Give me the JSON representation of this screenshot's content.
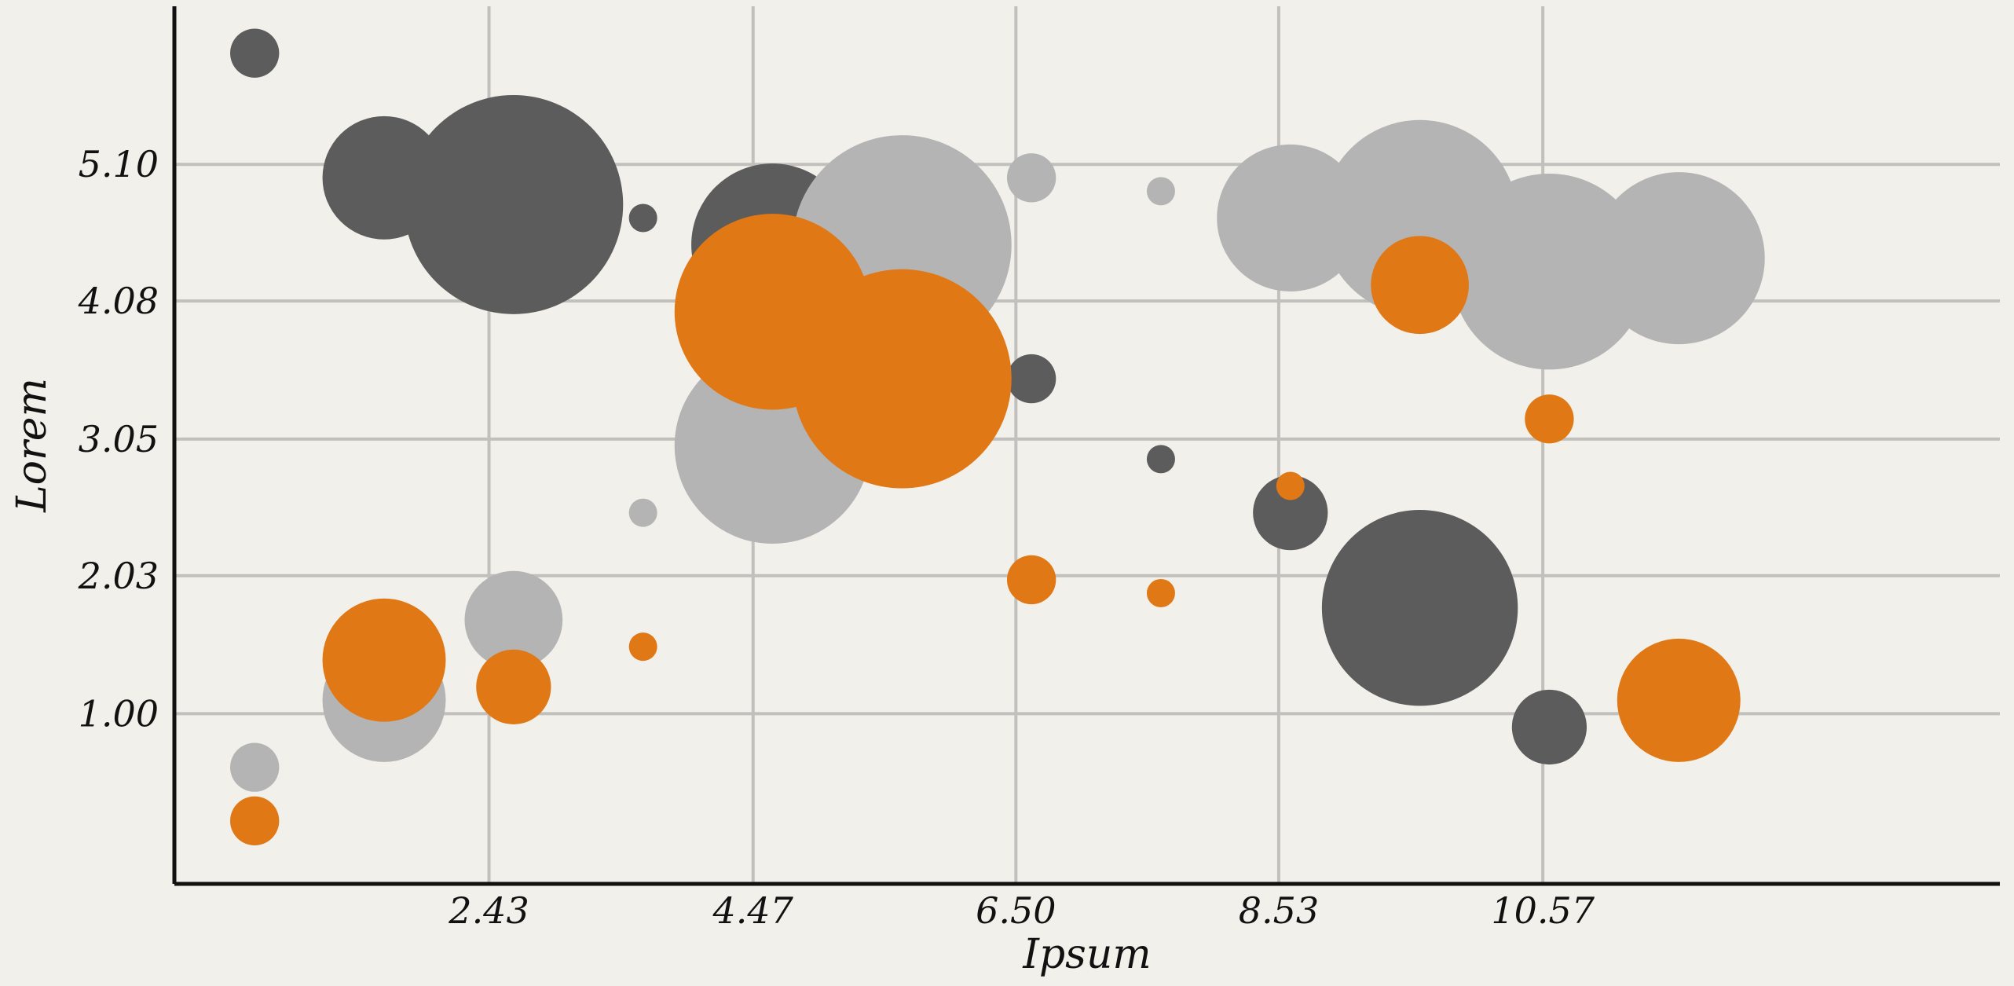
{
  "chart_data": {
    "type": "scatter",
    "variant": "bubble",
    "title": "",
    "xlabel": "Ipsum",
    "ylabel": "Lorem",
    "xlim": [
      0.0,
      14.1
    ],
    "ylim": [
      -0.27,
      6.28
    ],
    "x_ticks": [
      2.43,
      4.47,
      6.5,
      8.53,
      10.57
    ],
    "y_ticks": [
      1.0,
      2.03,
      3.05,
      4.08,
      5.1
    ],
    "x_tick_labels": [
      "2.43",
      "4.47",
      "6.50",
      "8.53",
      "10.57"
    ],
    "y_tick_labels": [
      "1.00",
      "2.03",
      "3.05",
      "4.08",
      "5.10"
    ],
    "grid": true,
    "size_unit": "relative bubble area",
    "series": [
      {
        "color": "#5c5c5c",
        "points": [
          {
            "x": 0.62,
            "y": 5.93,
            "size": 3
          },
          {
            "x": 1.62,
            "y": 5.0,
            "size": 19
          },
          {
            "x": 2.62,
            "y": 4.8,
            "size": 60
          },
          {
            "x": 3.62,
            "y": 4.7,
            "size": 1
          },
          {
            "x": 4.62,
            "y": 4.5,
            "size": 33
          },
          {
            "x": 5.62,
            "y": 4.25,
            "size": 33
          },
          {
            "x": 6.62,
            "y": 3.5,
            "size": 3
          },
          {
            "x": 7.62,
            "y": 2.9,
            "size": 1
          },
          {
            "x": 8.62,
            "y": 2.5,
            "size": 7
          },
          {
            "x": 9.62,
            "y": 1.79,
            "size": 48
          },
          {
            "x": 10.62,
            "y": 0.9,
            "size": 7
          }
        ]
      },
      {
        "color": "#b4b4b4",
        "points": [
          {
            "x": 0.62,
            "y": 0.6,
            "size": 3
          },
          {
            "x": 1.62,
            "y": 1.1,
            "size": 19
          },
          {
            "x": 2.62,
            "y": 1.7,
            "size": 12
          },
          {
            "x": 3.62,
            "y": 2.5,
            "size": 1
          },
          {
            "x": 4.62,
            "y": 3.0,
            "size": 48
          },
          {
            "x": 5.62,
            "y": 4.5,
            "size": 60
          },
          {
            "x": 6.62,
            "y": 5.0,
            "size": 3
          },
          {
            "x": 7.62,
            "y": 4.9,
            "size": 1
          },
          {
            "x": 8.62,
            "y": 4.7,
            "size": 27
          },
          {
            "x": 9.62,
            "y": 4.7,
            "size": 48
          },
          {
            "x": 10.62,
            "y": 4.3,
            "size": 48
          },
          {
            "x": 11.62,
            "y": 4.4,
            "size": 37
          }
        ]
      },
      {
        "color": "#e07816",
        "points": [
          {
            "x": 0.62,
            "y": 0.2,
            "size": 3
          },
          {
            "x": 1.62,
            "y": 1.4,
            "size": 19
          },
          {
            "x": 2.62,
            "y": 1.2,
            "size": 7
          },
          {
            "x": 3.62,
            "y": 1.5,
            "size": 1
          },
          {
            "x": 4.62,
            "y": 4.0,
            "size": 48
          },
          {
            "x": 5.62,
            "y": 3.5,
            "size": 60
          },
          {
            "x": 6.62,
            "y": 2.0,
            "size": 3
          },
          {
            "x": 7.62,
            "y": 1.9,
            "size": 1
          },
          {
            "x": 8.62,
            "y": 2.7,
            "size": 1
          },
          {
            "x": 9.62,
            "y": 4.2,
            "size": 12
          },
          {
            "x": 10.62,
            "y": 3.2,
            "size": 3
          },
          {
            "x": 11.62,
            "y": 1.1,
            "size": 19
          }
        ]
      }
    ]
  }
}
